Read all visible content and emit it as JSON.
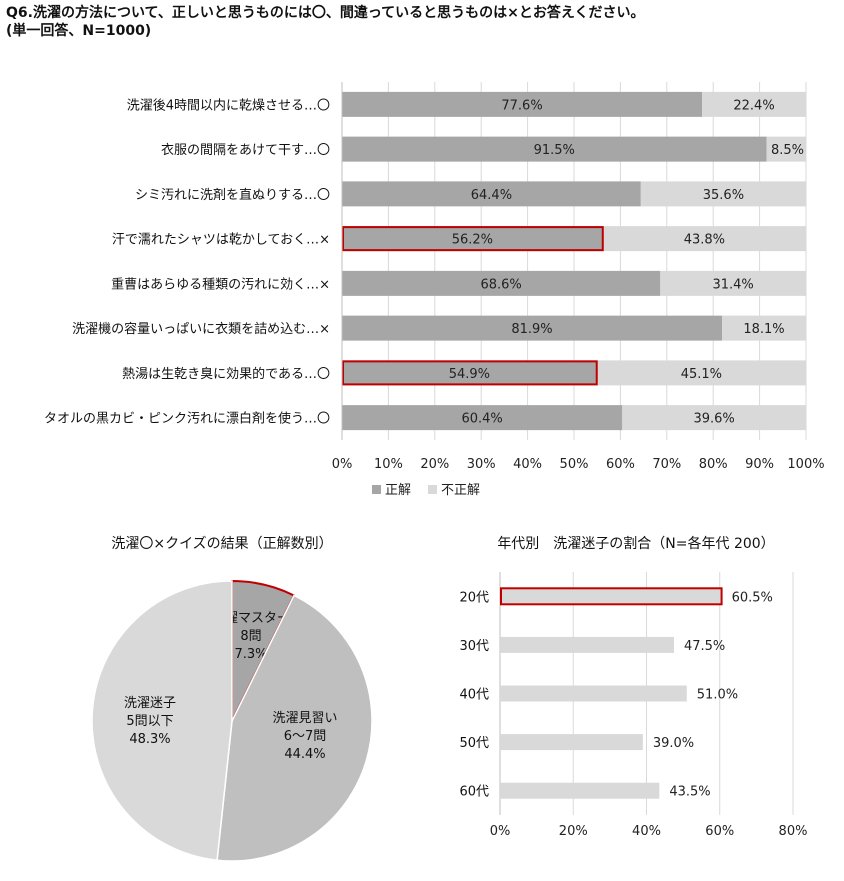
{
  "header": {
    "title_line1": "Q6.洗濯の方法について、正しいと思うものには〇、間違っていると思うものは×とお答えください。",
    "title_line2": "(単一回答、N=1000)"
  },
  "chart_data": [
    {
      "type": "bar",
      "orientation": "horizontal",
      "stacked": true,
      "categories": [
        "洗濯後4時間以内に乾燥させる…〇",
        "衣服の間隔をあけて干す…〇",
        "シミ汚れに洗剤を直ぬりする…〇",
        "汗で濡れたシャツは乾かしておく…×",
        "重曹はあらゆる種類の汚れに効く…×",
        "洗濯機の容量いっぱいに衣類を詰め込む…×",
        "熱湯は生乾き臭に効果的である…〇",
        "タオルの黒カビ・ピンク汚れに漂白剤を使う…〇"
      ],
      "series": [
        {
          "name": "正解",
          "values": [
            77.6,
            91.5,
            64.4,
            56.2,
            68.6,
            81.9,
            54.9,
            60.4
          ],
          "labels": [
            "77.6%",
            "91.5%",
            "64.4%",
            "56.2%",
            "68.6%",
            "81.9%",
            "54.9%",
            "60.4%"
          ],
          "color": "#a6a6a6"
        },
        {
          "name": "不正解",
          "values": [
            22.4,
            8.5,
            35.6,
            43.8,
            31.4,
            18.1,
            45.1,
            39.6
          ],
          "labels": [
            "22.4%",
            "8.5%",
            "35.6%",
            "43.8%",
            "31.4%",
            "18.1%",
            "45.1%",
            "39.6%"
          ],
          "color": "#d9d9d9"
        }
      ],
      "highlighted_categories": [
        3,
        6
      ],
      "highlight_color": "#c00000",
      "xlim": [
        0,
        100
      ],
      "xticks": [
        "0%",
        "10%",
        "20%",
        "30%",
        "40%",
        "50%",
        "60%",
        "70%",
        "80%",
        "90%",
        "100%"
      ],
      "grid": true,
      "legend": "bottom"
    },
    {
      "type": "pie",
      "title": "洗濯〇×クイズの結果（正解数別）",
      "slices": [
        {
          "name": "洗濯マスター",
          "sub": "8問",
          "value": 7.3,
          "label": "7.3%",
          "color": "#a6a6a6",
          "highlight": true
        },
        {
          "name": "洗濯見習い",
          "sub": "6～7問",
          "value": 44.4,
          "label": "44.4%",
          "color": "#bfbfbf",
          "highlight": false
        },
        {
          "name": "洗濯迷子",
          "sub": "5問以下",
          "value": 48.3,
          "label": "48.3%",
          "color": "#d9d9d9",
          "highlight": false
        }
      ],
      "highlight_color": "#c00000"
    },
    {
      "type": "bar",
      "orientation": "horizontal",
      "title": "年代別　洗濯迷子の割合（N=各年代 200）",
      "categories": [
        "20代",
        "30代",
        "40代",
        "50代",
        "60代"
      ],
      "values": [
        60.5,
        47.5,
        51.0,
        39.0,
        43.5
      ],
      "labels": [
        "60.5%",
        "47.5%",
        "51.0%",
        "39.0%",
        "43.5%"
      ],
      "highlighted_categories": [
        0
      ],
      "highlight_color": "#c00000",
      "color": "#d9d9d9",
      "xlim": [
        0,
        80
      ],
      "xticks": [
        "0%",
        "20%",
        "40%",
        "60%",
        "80%"
      ],
      "grid": true
    }
  ]
}
